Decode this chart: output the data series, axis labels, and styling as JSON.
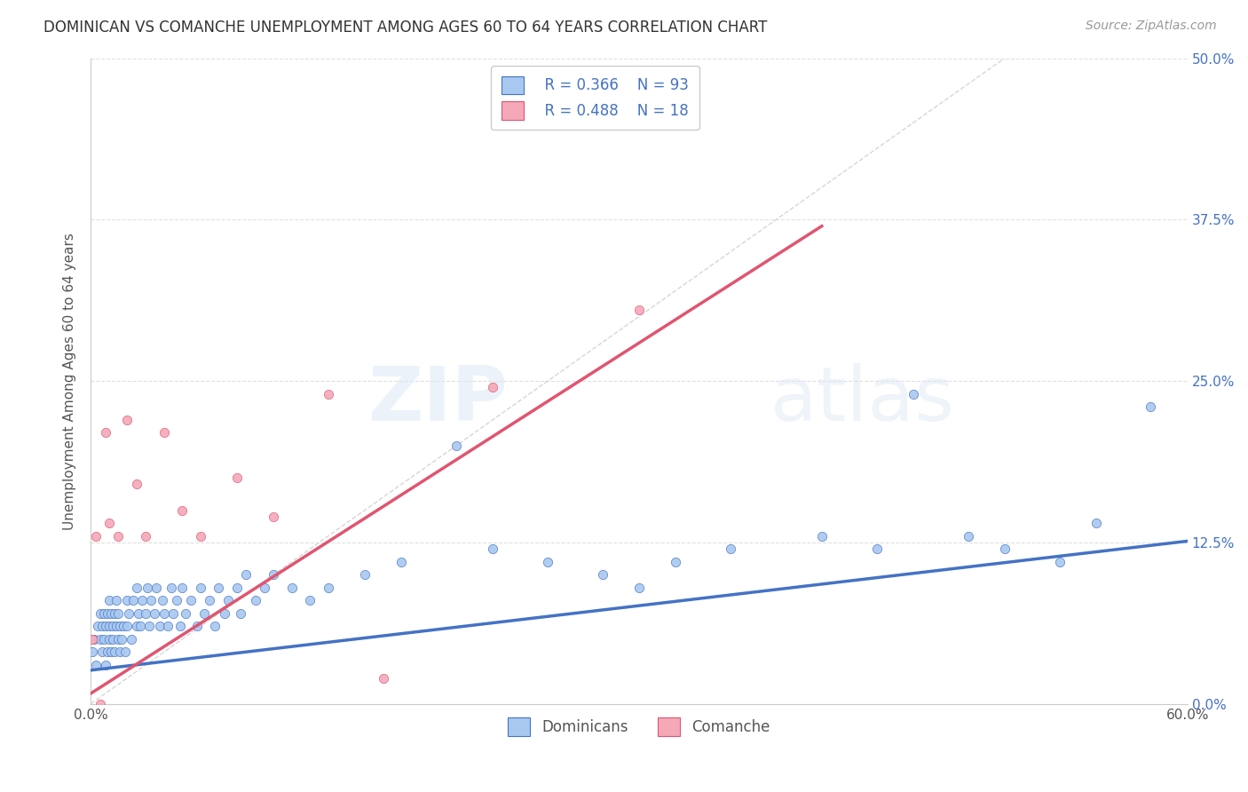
{
  "title": "DOMINICAN VS COMANCHE UNEMPLOYMENT AMONG AGES 60 TO 64 YEARS CORRELATION CHART",
  "source": "Source: ZipAtlas.com",
  "ylabel": "Unemployment Among Ages 60 to 64 years",
  "xlim": [
    0.0,
    0.6
  ],
  "ylim": [
    0.0,
    0.5
  ],
  "xticks": [
    0.0,
    0.1,
    0.2,
    0.3,
    0.4,
    0.5,
    0.6
  ],
  "yticks": [
    0.0,
    0.125,
    0.25,
    0.375,
    0.5
  ],
  "xticklabels": [
    "0.0%",
    "",
    "",
    "",
    "",
    "",
    "60.0%"
  ],
  "yticklabels_right": [
    "0.0%",
    "12.5%",
    "25.0%",
    "37.5%",
    "50.0%"
  ],
  "legend_labels": [
    "Dominicans",
    "Comanche"
  ],
  "dot_color_dominican": "#a8c8f0",
  "dot_color_comanche": "#f4a8b8",
  "line_color_dominican": "#4472c4",
  "line_color_comanche": "#e05570",
  "diagonal_color": "#cccccc",
  "background_color": "#ffffff",
  "grid_color": "#e0e0e0",
  "watermark_zip": "ZIP",
  "watermark_atlas": "atlas",
  "title_color": "#333333",
  "source_color": "#999999",
  "tick_color": "#4472c4",
  "dominican_x": [
    0.001,
    0.002,
    0.003,
    0.004,
    0.005,
    0.005,
    0.006,
    0.006,
    0.007,
    0.007,
    0.008,
    0.008,
    0.009,
    0.009,
    0.01,
    0.01,
    0.01,
    0.011,
    0.011,
    0.012,
    0.012,
    0.013,
    0.013,
    0.014,
    0.014,
    0.015,
    0.015,
    0.016,
    0.016,
    0.017,
    0.018,
    0.019,
    0.02,
    0.02,
    0.021,
    0.022,
    0.023,
    0.025,
    0.025,
    0.026,
    0.027,
    0.028,
    0.03,
    0.031,
    0.032,
    0.033,
    0.035,
    0.036,
    0.038,
    0.039,
    0.04,
    0.042,
    0.044,
    0.045,
    0.047,
    0.049,
    0.05,
    0.052,
    0.055,
    0.058,
    0.06,
    0.062,
    0.065,
    0.068,
    0.07,
    0.073,
    0.075,
    0.08,
    0.082,
    0.085,
    0.09,
    0.095,
    0.1,
    0.11,
    0.12,
    0.13,
    0.15,
    0.17,
    0.2,
    0.22,
    0.25,
    0.28,
    0.3,
    0.32,
    0.35,
    0.4,
    0.43,
    0.45,
    0.48,
    0.5,
    0.53,
    0.55,
    0.58
  ],
  "dominican_y": [
    0.04,
    0.05,
    0.03,
    0.06,
    0.05,
    0.07,
    0.04,
    0.06,
    0.05,
    0.07,
    0.03,
    0.06,
    0.04,
    0.07,
    0.05,
    0.06,
    0.08,
    0.04,
    0.07,
    0.05,
    0.06,
    0.04,
    0.07,
    0.06,
    0.08,
    0.05,
    0.07,
    0.04,
    0.06,
    0.05,
    0.06,
    0.04,
    0.06,
    0.08,
    0.07,
    0.05,
    0.08,
    0.06,
    0.09,
    0.07,
    0.06,
    0.08,
    0.07,
    0.09,
    0.06,
    0.08,
    0.07,
    0.09,
    0.06,
    0.08,
    0.07,
    0.06,
    0.09,
    0.07,
    0.08,
    0.06,
    0.09,
    0.07,
    0.08,
    0.06,
    0.09,
    0.07,
    0.08,
    0.06,
    0.09,
    0.07,
    0.08,
    0.09,
    0.07,
    0.1,
    0.08,
    0.09,
    0.1,
    0.09,
    0.08,
    0.09,
    0.1,
    0.11,
    0.2,
    0.12,
    0.11,
    0.1,
    0.09,
    0.11,
    0.12,
    0.13,
    0.12,
    0.24,
    0.13,
    0.12,
    0.11,
    0.14,
    0.23
  ],
  "comanche_x": [
    0.001,
    0.003,
    0.005,
    0.008,
    0.01,
    0.015,
    0.02,
    0.025,
    0.03,
    0.04,
    0.05,
    0.06,
    0.08,
    0.1,
    0.13,
    0.16,
    0.22,
    0.3
  ],
  "comanche_y": [
    0.05,
    0.13,
    0.0,
    0.21,
    0.14,
    0.13,
    0.22,
    0.17,
    0.13,
    0.21,
    0.15,
    0.13,
    0.175,
    0.145,
    0.24,
    0.02,
    0.245,
    0.305
  ],
  "dom_line_x0": 0.0,
  "dom_line_y0": 0.026,
  "dom_line_x1": 0.6,
  "dom_line_y1": 0.126,
  "com_line_x0": 0.0,
  "com_line_y0": 0.008,
  "com_line_x1": 0.4,
  "com_line_y1": 0.37
}
